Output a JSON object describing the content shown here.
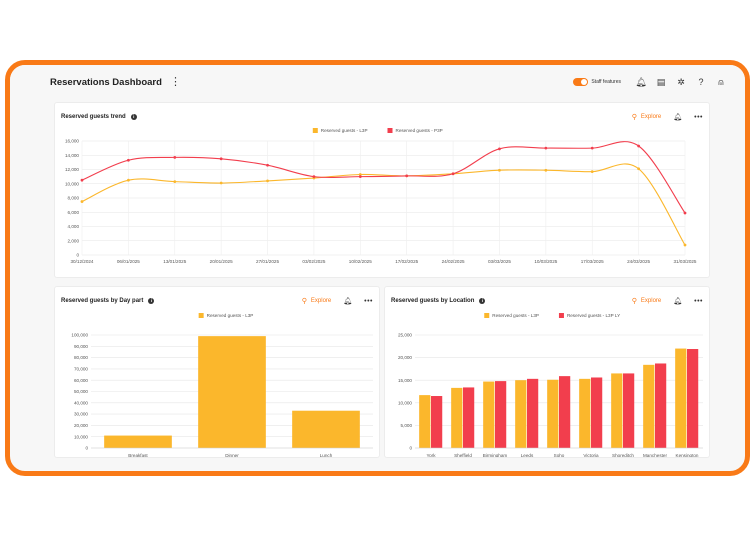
{
  "header": {
    "title": "Reservations Dashboard",
    "staff_features_label": "Staff features",
    "staff_features_on": true,
    "icons": [
      "bell-icon",
      "document-icon",
      "settings-icon",
      "help-icon",
      "user-icon"
    ]
  },
  "colors": {
    "accent": "#f97a17",
    "yellow": "#fbb72c",
    "red": "#f23e4d"
  },
  "trend": {
    "title": "Reserved guests trend",
    "explore_label": "Explore"
  },
  "daypart": {
    "title": "Reserved guests by Day part",
    "explore_label": "Explore"
  },
  "location": {
    "title": "Reserved guests by Location",
    "explore_label": "Explore"
  },
  "chart_data": [
    {
      "type": "line",
      "title": "Reserved guests trend",
      "x": [
        "30/12/2024",
        "06/01/2025",
        "13/01/2025",
        "20/01/2025",
        "27/01/2025",
        "03/02/2025",
        "10/02/2025",
        "17/02/2025",
        "24/02/2025",
        "03/03/2025",
        "10/03/2025",
        "17/03/2025",
        "24/03/2025",
        "31/03/2025"
      ],
      "series": [
        {
          "name": "Reserved guests - L3P",
          "color": "#fbb72c",
          "values": [
            7500,
            10500,
            10300,
            10100,
            10400,
            10800,
            11300,
            11100,
            11400,
            11900,
            11900,
            11700,
            12100,
            1400
          ]
        },
        {
          "name": "Reserved guests - P3P",
          "color": "#f23e4d",
          "values": [
            10500,
            13300,
            13700,
            13500,
            12600,
            11000,
            11000,
            11100,
            11400,
            14900,
            15000,
            15000,
            15300,
            5900
          ]
        }
      ],
      "ylim": [
        0,
        16000
      ],
      "yticks": [
        "0",
        "2,000",
        "4,000",
        "6,000",
        "8,000",
        "10,000",
        "12,000",
        "14,000",
        "16,000"
      ],
      "legend": "top-center",
      "grid": true
    },
    {
      "type": "bar",
      "title": "Reserved guests by Day part",
      "categories": [
        "Breakfast",
        "Dinner",
        "Lunch"
      ],
      "series": [
        {
          "name": "Reserved guests - L3P",
          "color": "#fbb72c",
          "values": [
            11000,
            99000,
            33000
          ]
        }
      ],
      "ylim": [
        0,
        100000
      ],
      "yticks": [
        "0",
        "10,000",
        "20,000",
        "30,000",
        "40,000",
        "50,000",
        "60,000",
        "70,000",
        "80,000",
        "90,000",
        "100,000"
      ],
      "legend": "top-center",
      "grid": true
    },
    {
      "type": "bar",
      "title": "Reserved guests by Location",
      "categories": [
        "York",
        "Sheffield",
        "Birmingham",
        "Leeds",
        "Soho",
        "Victoria",
        "Shoreditch",
        "Manchester",
        "Kensington"
      ],
      "series": [
        {
          "name": "Reserved guests - L3P",
          "color": "#fbb72c",
          "values": [
            11700,
            13300,
            14700,
            15000,
            15100,
            15300,
            16500,
            18400,
            22000
          ]
        },
        {
          "name": "Reserved guests - L3P LY",
          "color": "#f23e4d",
          "values": [
            11500,
            13400,
            14800,
            15300,
            15900,
            15600,
            16500,
            18700,
            21900
          ]
        }
      ],
      "ylim": [
        0,
        25000
      ],
      "yticks": [
        "0",
        "5,000",
        "10,000",
        "15,000",
        "20,000",
        "25,000"
      ],
      "legend": "top-center",
      "grid": true
    }
  ]
}
